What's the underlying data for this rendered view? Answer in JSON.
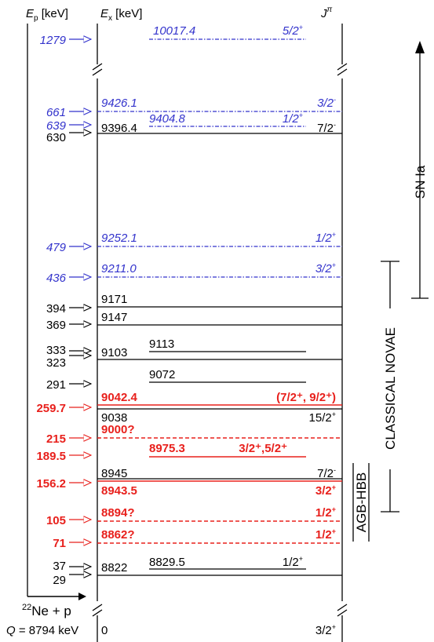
{
  "colors": {
    "black": "#000000",
    "blue": "#3333cc",
    "red": "#e8201c"
  },
  "headers": {
    "ep": "E",
    "ep_sub": "p",
    "ep_unit": " [keV]",
    "ex": "E",
    "ex_sub": "x",
    "ex_unit": " [keV]",
    "j": "J",
    "j_sup": "π"
  },
  "levels": [
    {
      "ex": "10017.4",
      "jpi": "5/2",
      "jpi_sup": "+",
      "color": "blue",
      "style": "dotted-blue",
      "col": "middle",
      "ep": "1279"
    },
    {
      "ex": "9426.1",
      "jpi": "3/2",
      "jpi_sup": "-",
      "color": "blue",
      "style": "dotted-blue",
      "col": "left",
      "ep": "661"
    },
    {
      "ex": "9404.8",
      "jpi": "1/2",
      "jpi_sup": "+",
      "color": "blue",
      "style": "dotted-blue",
      "col": "middle",
      "ep": "639"
    },
    {
      "ex": "9396.4",
      "jpi": "7/2",
      "jpi_sup": "-",
      "color": "black",
      "style": "solid",
      "col": "left",
      "ep": "630"
    },
    {
      "ex": "9252.1",
      "jpi": "1/2",
      "jpi_sup": "+",
      "color": "blue",
      "style": "dotted-blue",
      "col": "left",
      "ep": "479"
    },
    {
      "ex": "9211.0",
      "jpi": "3/2",
      "jpi_sup": "+",
      "color": "blue",
      "style": "dotted-blue",
      "col": "left",
      "ep": "436"
    },
    {
      "ex": "9171",
      "jpi": "",
      "jpi_sup": "",
      "color": "black",
      "style": "solid",
      "col": "left",
      "ep": "394"
    },
    {
      "ex": "9147",
      "jpi": "",
      "jpi_sup": "",
      "color": "black",
      "style": "solid",
      "col": "left",
      "ep": "369"
    },
    {
      "ex": "9113",
      "jpi": "",
      "jpi_sup": "",
      "color": "black",
      "style": "solid",
      "col": "middle",
      "ep": "333"
    },
    {
      "ex": "9103",
      "jpi": "",
      "jpi_sup": "",
      "color": "black",
      "style": "solid",
      "col": "left",
      "ep": "323"
    },
    {
      "ex": "9072",
      "jpi": "",
      "jpi_sup": "",
      "color": "black",
      "style": "solid",
      "col": "middle",
      "ep": "291"
    },
    {
      "ex": "9042.4",
      "jpi": "(7/2⁺, 9/2⁺)",
      "jpi_sup": "",
      "color": "red",
      "style": "solid-red",
      "col": "left",
      "ep": "259.7"
    },
    {
      "ex": "9038",
      "jpi": "15/2",
      "jpi_sup": "+",
      "color": "black",
      "style": "solid",
      "col": "left",
      "ep": ""
    },
    {
      "ex": "9000?",
      "jpi": "",
      "jpi_sup": "",
      "color": "red",
      "style": "dashed-red",
      "col": "left",
      "ep": "215"
    },
    {
      "ex": "8975.3",
      "jpi": "3/2⁺,5/2⁺",
      "jpi_sup": "",
      "color": "red",
      "style": "solid-red",
      "col": "middle",
      "ep": "189.5"
    },
    {
      "ex": "8945",
      "jpi": "7/2",
      "jpi_sup": "-",
      "color": "black",
      "style": "solid",
      "col": "left",
      "ep": ""
    },
    {
      "ex": "8943.5",
      "jpi": "3/2",
      "jpi_sup": "+",
      "color": "red",
      "style": "solid-red",
      "col": "left",
      "ep": "156.2"
    },
    {
      "ex": "8894?",
      "jpi": "1/2",
      "jpi_sup": "+",
      "color": "red",
      "style": "dashed-red",
      "col": "left",
      "ep": "105"
    },
    {
      "ex": "8862?",
      "jpi": "1/2",
      "jpi_sup": "+",
      "color": "red",
      "style": "dashed-red",
      "col": "left",
      "ep": "71"
    },
    {
      "ex": "8829.5",
      "jpi": "1/2",
      "jpi_sup": "+",
      "color": "black",
      "style": "solid",
      "col": "middle",
      "ep": "37"
    },
    {
      "ex": "8822",
      "jpi": "",
      "jpi_sup": "",
      "color": "black",
      "style": "solid",
      "col": "left",
      "ep": "29"
    },
    {
      "ex": "0",
      "jpi": "3/2",
      "jpi_sup": "+",
      "color": "black",
      "style": "solid",
      "col": "left",
      "ep": ""
    }
  ],
  "reaction": {
    "pre": "22",
    "label": "Ne + p"
  },
  "q_value": {
    "q": "Q",
    "rest": " = 8794 keV"
  },
  "scenarios": [
    {
      "label": "SN Ia"
    },
    {
      "label": "CLASSICAL NOVAE"
    },
    {
      "label": "AGB-HBB"
    }
  ]
}
